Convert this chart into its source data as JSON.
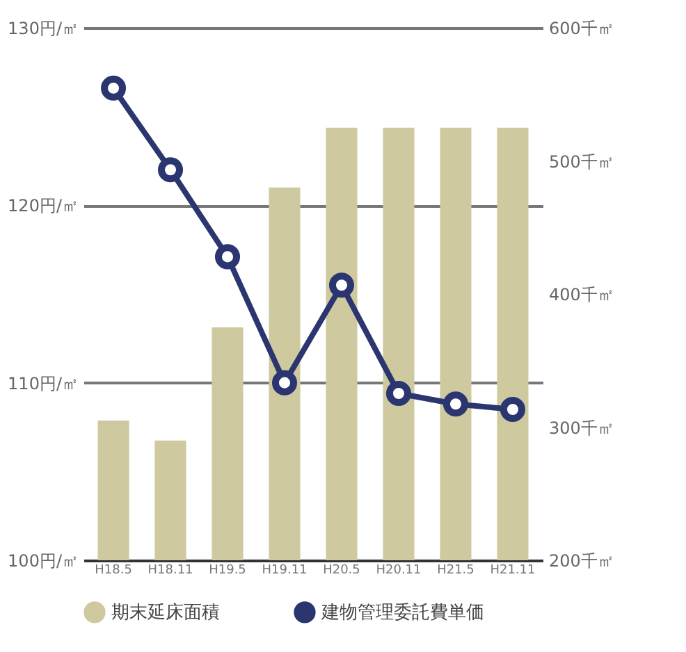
{
  "chart_data": {
    "type": "bar",
    "categories": [
      "H18.5",
      "H18.11",
      "H19.5",
      "H19.11",
      "H20.5",
      "H20.11",
      "H21.5",
      "H21.11"
    ],
    "series": [
      {
        "name": "期末延床面積",
        "axis": "y2",
        "color": "#cfc9a0",
        "values": [
          305,
          290,
          375,
          480,
          525,
          525,
          525,
          525
        ]
      },
      {
        "name": "建物管理委託費単価",
        "type": "line",
        "color": "#2b3670",
        "values": [
          126.6,
          122.0,
          117.1,
          110.0,
          115.5,
          109.4,
          108.8,
          108.5
        ]
      }
    ],
    "ylim": [
      100,
      130
    ],
    "yticks": [
      {
        "value": 100,
        "label": "100円/㎡"
      },
      {
        "value": 110,
        "label": "110円/㎡"
      },
      {
        "value": 120,
        "label": "120円/㎡"
      },
      {
        "value": 130,
        "label": "130円/㎡"
      }
    ],
    "y2lim": [
      200,
      600
    ],
    "y2ticks": [
      {
        "value": 200,
        "label": "200千㎡"
      },
      {
        "value": 300,
        "label": "300千㎡"
      },
      {
        "value": 400,
        "label": "400千㎡"
      },
      {
        "value": 500,
        "label": "500千㎡"
      },
      {
        "value": 600,
        "label": "600千㎡"
      }
    ],
    "grid": "y",
    "legend": "bottom",
    "marker": "circle",
    "line_style": "solid"
  }
}
